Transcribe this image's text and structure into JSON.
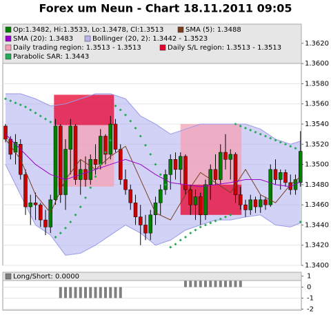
{
  "chart_data": [
    {
      "type": "candlestick",
      "title": "Forex um Neun - Chart 18.11.2011 09:05",
      "candles": {
        "name": "Op:1.3482, Hi:1.3533, Lo:1.3478, Cl:1.3513",
        "color": "#008000",
        "down_color": "#cc0000",
        "open": [
          1.3538,
          1.3525,
          1.3512,
          1.352,
          1.349,
          1.3458,
          1.3462,
          1.346,
          1.3445,
          1.3438,
          1.3465,
          1.3538,
          1.347,
          1.3515,
          1.3538,
          1.3485,
          1.3495,
          1.3485,
          1.3505,
          1.35,
          1.3528,
          1.351,
          1.354,
          1.3515,
          1.3485,
          1.3475,
          1.3462,
          1.3448,
          1.344,
          1.3432,
          1.345,
          1.3462,
          1.3475,
          1.349,
          1.3505,
          1.3495,
          1.3508,
          1.3475,
          1.346,
          1.3468,
          1.345,
          1.348,
          1.3495,
          1.3485,
          1.3512,
          1.3505,
          1.351,
          1.347,
          1.346,
          1.3455,
          1.3465,
          1.3458,
          1.3465,
          1.346,
          1.3495,
          1.3485,
          1.3492,
          1.3482,
          1.3475,
          1.3482
        ],
        "high": [
          1.354,
          1.3528,
          1.353,
          1.3525,
          1.3495,
          1.347,
          1.3472,
          1.3462,
          1.3455,
          1.347,
          1.3545,
          1.354,
          1.3525,
          1.3545,
          1.354,
          1.3505,
          1.3508,
          1.351,
          1.352,
          1.3535,
          1.353,
          1.3548,
          1.3545,
          1.352,
          1.3495,
          1.348,
          1.347,
          1.346,
          1.345,
          1.3455,
          1.3468,
          1.348,
          1.3495,
          1.351,
          1.3512,
          1.3512,
          1.351,
          1.348,
          1.3475,
          1.3472,
          1.3485,
          1.35,
          1.351,
          1.352,
          1.353,
          1.3515,
          1.3512,
          1.3478,
          1.3465,
          1.347,
          1.3468,
          1.347,
          1.3468,
          1.35,
          1.3505,
          1.3495,
          1.3495,
          1.349,
          1.349,
          1.3533
        ],
        "low": [
          1.3522,
          1.3505,
          1.35,
          1.3485,
          1.345,
          1.344,
          1.3445,
          1.3438,
          1.343,
          1.3432,
          1.346,
          1.3462,
          1.3455,
          1.349,
          1.348,
          1.347,
          1.3478,
          1.348,
          1.349,
          1.3495,
          1.35,
          1.3505,
          1.3512,
          1.348,
          1.347,
          1.3455,
          1.344,
          1.342,
          1.3425,
          1.3425,
          1.344,
          1.345,
          1.347,
          1.3475,
          1.3485,
          1.348,
          1.347,
          1.345,
          1.3445,
          1.344,
          1.3445,
          1.3465,
          1.348,
          1.348,
          1.3495,
          1.3485,
          1.3462,
          1.3455,
          1.3448,
          1.345,
          1.3452,
          1.3452,
          1.3455,
          1.3458,
          1.348,
          1.3475,
          1.3478,
          1.347,
          1.347,
          1.3478
        ],
        "close": [
          1.3525,
          1.351,
          1.3522,
          1.349,
          1.3458,
          1.3462,
          1.346,
          1.3445,
          1.3438,
          1.3465,
          1.3538,
          1.347,
          1.3515,
          1.3538,
          1.3485,
          1.3495,
          1.3485,
          1.3505,
          1.35,
          1.3528,
          1.351,
          1.354,
          1.3515,
          1.3485,
          1.3475,
          1.3462,
          1.3448,
          1.344,
          1.3432,
          1.345,
          1.3462,
          1.3475,
          1.349,
          1.3505,
          1.3495,
          1.3508,
          1.3475,
          1.346,
          1.3468,
          1.345,
          1.348,
          1.3495,
          1.3485,
          1.3512,
          1.3505,
          1.351,
          1.347,
          1.346,
          1.3455,
          1.3465,
          1.3458,
          1.3465,
          1.346,
          1.3495,
          1.3485,
          1.3492,
          1.3482,
          1.3475,
          1.3485,
          1.3513
        ]
      },
      "series": [
        {
          "name": "SMA (5): 1.3488",
          "color": "#7a3e1c",
          "x": [
            0,
            3,
            6,
            9,
            12,
            15,
            18,
            21,
            24,
            27,
            30,
            33,
            36,
            39,
            42,
            45,
            48,
            51,
            54,
            57,
            59
          ],
          "values": [
            1.3525,
            1.3505,
            1.347,
            1.3452,
            1.3485,
            1.3505,
            1.3495,
            1.3508,
            1.3518,
            1.3485,
            1.3452,
            1.3445,
            1.347,
            1.3492,
            1.3482,
            1.3472,
            1.3495,
            1.347,
            1.3462,
            1.348,
            1.3488
          ]
        },
        {
          "name": "SMA (20): 1.3483",
          "color": "#9900cc",
          "x": [
            0,
            3,
            6,
            9,
            12,
            15,
            18,
            21,
            24,
            27,
            30,
            33,
            36,
            39,
            42,
            45,
            48,
            51,
            54,
            57,
            59
          ],
          "values": [
            1.353,
            1.3515,
            1.35,
            1.349,
            1.3485,
            1.349,
            1.3495,
            1.35,
            1.3505,
            1.35,
            1.349,
            1.3482,
            1.348,
            1.3478,
            1.348,
            1.3482,
            1.3485,
            1.3485,
            1.348,
            1.3478,
            1.3483
          ]
        }
      ],
      "bollinger": {
        "name": "Bollinger (20, 2): 1.3442 - 1.3523",
        "color": "#b4b4f0",
        "x": [
          0,
          3,
          6,
          9,
          12,
          15,
          18,
          21,
          24,
          27,
          30,
          33,
          36,
          39,
          42,
          45,
          48,
          51,
          54,
          57,
          59
        ],
        "upper": [
          1.357,
          1.357,
          1.3565,
          1.3558,
          1.356,
          1.3565,
          1.357,
          1.357,
          1.3565,
          1.3548,
          1.354,
          1.353,
          1.3535,
          1.354,
          1.354,
          1.354,
          1.354,
          1.3535,
          1.3525,
          1.352,
          1.3523
        ],
        "lower": [
          1.35,
          1.347,
          1.344,
          1.343,
          1.341,
          1.3412,
          1.342,
          1.343,
          1.344,
          1.3432,
          1.342,
          1.3425,
          1.3435,
          1.344,
          1.3445,
          1.3445,
          1.3448,
          1.345,
          1.344,
          1.3438,
          1.3442
        ]
      },
      "regions": [
        {
          "name": "Daily trading region: 1.3513 - 1.3513",
          "color": "#f4a0b4",
          "spans": [
            {
              "x": [
                9.7,
                21.7
              ],
              "values": [
                1.3478,
                1.3539
              ]
            },
            {
              "x": [
                35,
                47.2
              ],
              "values": [
                1.348,
                1.354
              ]
            }
          ]
        },
        {
          "name": "Daily S/L region: 1.3513 - 1.3513",
          "color": "#e8002c",
          "spans": [
            {
              "x": [
                9.7,
                21.7
              ],
              "values": [
                1.3539,
                1.3569
              ]
            },
            {
              "x": [
                35,
                47.2
              ],
              "values": [
                1.345,
                1.348
              ]
            }
          ]
        }
      ],
      "sar": {
        "name": "Parabolic SAR: 1.3443",
        "color": "#22aa55",
        "values": [
          1.3565,
          1.3563,
          1.3561,
          1.3559,
          1.3557,
          1.3554,
          1.3551,
          1.3548,
          1.3545,
          1.3542,
          1.3428,
          1.3432,
          1.3437,
          1.3443,
          1.345,
          1.3458,
          1.3467,
          1.3477,
          1.3488,
          1.35,
          1.3512,
          1.3524,
          1.3558,
          1.3554,
          1.3549,
          1.3543,
          1.3536,
          1.3528,
          1.3519,
          1.351,
          1.35,
          1.349,
          1.348,
          1.3418,
          1.3421,
          1.3425,
          1.3428,
          1.3432,
          1.3435,
          1.3438,
          1.344,
          1.3442,
          1.3444,
          1.3446,
          1.3448,
          1.345,
          1.354,
          1.3538,
          1.3536,
          1.3534,
          1.3532,
          1.353,
          1.3528,
          1.3526,
          1.3524,
          1.3522,
          1.352,
          1.3518,
          1.3516,
          1.3443
        ]
      },
      "ylim": [
        1.34,
        1.3639
      ],
      "yticks": [
        {
          "value": 1.34,
          "label": "1.3400"
        },
        {
          "value": 1.342,
          "label": "1.3420"
        },
        {
          "value": 1.344,
          "label": "1.3440"
        },
        {
          "value": 1.346,
          "label": "1.3460"
        },
        {
          "value": 1.348,
          "label": "1.3480"
        },
        {
          "value": 1.35,
          "label": "1.3500"
        },
        {
          "value": 1.352,
          "label": "1.3520"
        },
        {
          "value": 1.354,
          "label": "1.3540"
        },
        {
          "value": 1.356,
          "label": "1.3560"
        },
        {
          "value": 1.358,
          "label": "1.3580"
        },
        {
          "value": 1.36,
          "label": "1.3600"
        },
        {
          "value": 1.362,
          "label": "1.3620"
        }
      ],
      "grid": true
    },
    {
      "type": "bar",
      "name": "Long/Short: 0.0000",
      "color": "#808080",
      "values": [
        0,
        0,
        0,
        0,
        0,
        0,
        0,
        0,
        0,
        0,
        0,
        -1,
        -1,
        -1,
        -1,
        -1,
        -1,
        -1,
        -1,
        -1,
        -1,
        -1,
        -1,
        -1,
        0,
        0,
        0,
        0,
        0,
        0,
        0,
        0,
        0,
        0,
        0,
        0,
        1,
        1,
        1,
        1,
        1,
        1,
        1,
        1,
        1,
        1,
        1,
        1,
        0,
        0,
        0,
        0,
        0,
        0,
        0,
        0,
        0,
        0,
        0,
        0
      ],
      "ylim": [
        -2.1,
        1.35
      ],
      "yticks": [
        -2,
        -1,
        0,
        1
      ],
      "grid": true
    }
  ]
}
